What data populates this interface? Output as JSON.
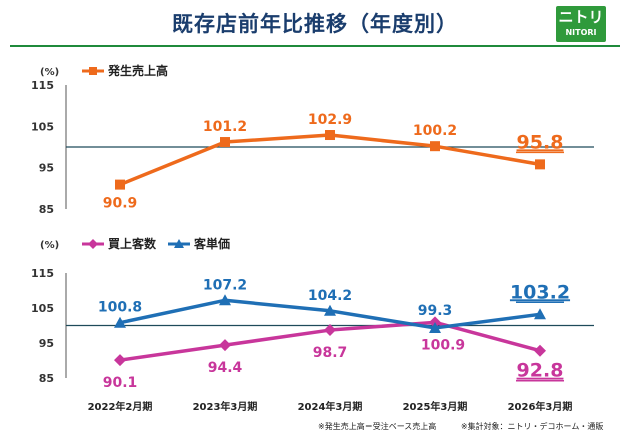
{
  "title": "既存店前年比推移（年度別）",
  "logo": {
    "line1": "ニトリ",
    "line2": "NITORI",
    "color": "#2f9a3b"
  },
  "footnotes": [
    "※発生売上高＝受注ベース売上高",
    "※集計対象：ニトリ・デコホーム・通販"
  ],
  "chart_data": [
    {
      "type": "line",
      "unit_label": "(%)",
      "categories": [
        "2022年2月期",
        "2023年3月期",
        "2024年3月期",
        "2025年3月期",
        "2026年3月期"
      ],
      "yticks": [
        85,
        95,
        105,
        115
      ],
      "ylim": [
        85,
        115
      ],
      "reference_line": 100,
      "series": [
        {
          "name": "発生売上高",
          "values": [
            90.9,
            101.2,
            102.9,
            100.2,
            95.8
          ],
          "labels": [
            "90.9",
            "101.2",
            "102.9",
            "100.2",
            "95.8"
          ],
          "color": "#ee6a1c",
          "marker": "square"
        }
      ]
    },
    {
      "type": "line",
      "unit_label": "(%)",
      "categories": [
        "2022年2月期",
        "2023年3月期",
        "2024年3月期",
        "2025年3月期",
        "2026年3月期"
      ],
      "yticks": [
        85,
        95,
        105,
        115
      ],
      "ylim": [
        85,
        115
      ],
      "reference_line": 100,
      "series": [
        {
          "name": "買上客数",
          "values": [
            90.1,
            94.4,
            98.7,
            100.9,
            92.8
          ],
          "labels": [
            "90.1",
            "94.4",
            "98.7",
            "100.9",
            "92.8"
          ],
          "color": "#c8369b",
          "marker": "diamond"
        },
        {
          "name": "客単価",
          "values": [
            100.8,
            107.2,
            104.2,
            99.3,
            103.2
          ],
          "labels": [
            "100.8",
            "107.2",
            "104.2",
            "99.3",
            "103.2"
          ],
          "color": "#1f6fb5",
          "marker": "triangle"
        }
      ]
    }
  ]
}
